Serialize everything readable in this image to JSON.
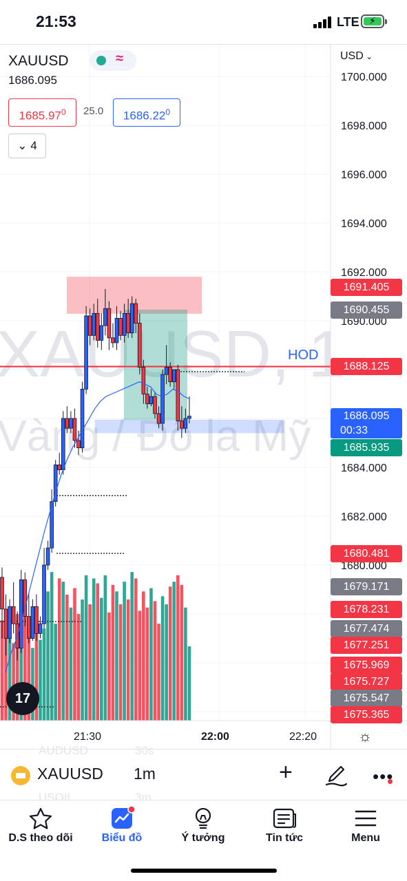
{
  "status_bar": {
    "time": "21:53",
    "network": "LTE"
  },
  "chart": {
    "symbol": "XAUUSD",
    "last_price": "1686.095",
    "bid": "1685.97",
    "bid_small": "0",
    "spread": "25.0",
    "ask": "1686.22",
    "ask_small": "0",
    "indicators_count": "4",
    "currency": "USD",
    "watermark_symbol": "XAUUSD, 1",
    "watermark_desc": "Vàng / Đô la Mỹ",
    "hod_label": "HOD",
    "price_axis": [
      "1700.000",
      "1698.000",
      "1696.000",
      "1694.000",
      "1692.000",
      "1690.000",
      "1684.000",
      "1682.000",
      "1680.000"
    ],
    "time_axis": [
      "21:30",
      "22:00",
      "22:20"
    ],
    "price_tags": {
      "t1691405": "1691.405",
      "t1690455": "1690.455",
      "t1688125": "1688.125",
      "current_price": "1686.095",
      "countdown": "00:33",
      "t1685935": "1685.935",
      "t1680481": "1680.481",
      "t1679171": "1679.171",
      "t1678231": "1678.231",
      "t1677474": "1677.474",
      "t1677251": "1677.251",
      "t1675969": "1675.969",
      "t1675727": "1675.727",
      "t1675547": "1675.547",
      "t1675365": "1675.365"
    },
    "colors": {
      "up": "#2962ff",
      "down": "#f23645",
      "hod_line": "#f23645",
      "volume_up": "#089981",
      "volume_down": "#f23645"
    }
  },
  "chart_data": {
    "type": "candlestick",
    "symbol": "XAUUSD",
    "interval": "1m",
    "ylim": [
      1675.2,
      1700.6
    ],
    "hod": 1688.125,
    "candles": [
      {
        "o": 1679.5,
        "h": 1679.9,
        "c": 1678.2,
        "l": 1677.0
      },
      {
        "o": 1678.2,
        "h": 1678.8,
        "c": 1677.0,
        "l": 1676.3
      },
      {
        "o": 1677.0,
        "h": 1678.6,
        "c": 1678.3,
        "l": 1676.8
      },
      {
        "o": 1678.3,
        "h": 1679.3,
        "c": 1677.6,
        "l": 1677.2
      },
      {
        "o": 1677.6,
        "h": 1678.1,
        "c": 1676.6,
        "l": 1676.1
      },
      {
        "o": 1676.6,
        "h": 1679.8,
        "c": 1679.4,
        "l": 1676.4
      },
      {
        "o": 1679.4,
        "h": 1679.7,
        "c": 1677.9,
        "l": 1677.5
      },
      {
        "o": 1677.9,
        "h": 1678.9,
        "c": 1677.0,
        "l": 1676.8
      },
      {
        "o": 1677.0,
        "h": 1678.6,
        "c": 1678.3,
        "l": 1676.9
      },
      {
        "o": 1678.3,
        "h": 1678.8,
        "c": 1677.2,
        "l": 1676.9
      },
      {
        "o": 1677.2,
        "h": 1677.9,
        "c": 1677.6,
        "l": 1677.0
      },
      {
        "o": 1677.6,
        "h": 1680.7,
        "c": 1680.0,
        "l": 1677.4
      },
      {
        "o": 1680.0,
        "h": 1681.0,
        "c": 1680.7,
        "l": 1679.8
      },
      {
        "o": 1680.7,
        "h": 1683.1,
        "c": 1682.6,
        "l": 1680.5
      },
      {
        "o": 1682.6,
        "h": 1684.3,
        "c": 1684.1,
        "l": 1682.4
      },
      {
        "o": 1684.1,
        "h": 1684.6,
        "c": 1683.9,
        "l": 1683.7
      },
      {
        "o": 1683.9,
        "h": 1686.3,
        "c": 1686.0,
        "l": 1683.7
      },
      {
        "o": 1686.0,
        "h": 1686.5,
        "c": 1685.6,
        "l": 1685.4
      },
      {
        "o": 1685.6,
        "h": 1686.3,
        "c": 1686.0,
        "l": 1685.4
      },
      {
        "o": 1686.0,
        "h": 1686.4,
        "c": 1685.1,
        "l": 1684.8
      },
      {
        "o": 1685.1,
        "h": 1685.5,
        "c": 1684.8,
        "l": 1684.5
      },
      {
        "o": 1684.8,
        "h": 1687.5,
        "c": 1687.2,
        "l": 1684.6
      },
      {
        "o": 1687.2,
        "h": 1690.6,
        "c": 1690.2,
        "l": 1687.0
      },
      {
        "o": 1690.2,
        "h": 1690.5,
        "c": 1689.4,
        "l": 1689.0
      },
      {
        "o": 1689.4,
        "h": 1690.7,
        "c": 1690.3,
        "l": 1689.2
      },
      {
        "o": 1690.3,
        "h": 1690.9,
        "c": 1689.2,
        "l": 1688.9
      },
      {
        "o": 1689.2,
        "h": 1690.3,
        "c": 1689.8,
        "l": 1688.8
      },
      {
        "o": 1689.8,
        "h": 1691.3,
        "c": 1690.5,
        "l": 1689.4
      },
      {
        "o": 1690.5,
        "h": 1690.8,
        "c": 1689.3,
        "l": 1688.8
      },
      {
        "o": 1689.3,
        "h": 1689.9,
        "c": 1689.1,
        "l": 1688.9
      },
      {
        "o": 1689.1,
        "h": 1690.6,
        "c": 1690.1,
        "l": 1688.8
      },
      {
        "o": 1690.1,
        "h": 1690.4,
        "c": 1689.4,
        "l": 1689.2
      },
      {
        "o": 1689.4,
        "h": 1690.7,
        "c": 1690.3,
        "l": 1689.1
      },
      {
        "o": 1690.3,
        "h": 1690.9,
        "c": 1689.5,
        "l": 1689.3
      },
      {
        "o": 1689.5,
        "h": 1691.0,
        "c": 1690.7,
        "l": 1689.3
      },
      {
        "o": 1690.7,
        "h": 1690.9,
        "c": 1689.9,
        "l": 1689.5
      },
      {
        "o": 1689.9,
        "h": 1690.3,
        "c": 1688.1,
        "l": 1687.8
      },
      {
        "o": 1688.1,
        "h": 1688.4,
        "c": 1687.0,
        "l": 1686.6
      },
      {
        "o": 1687.0,
        "h": 1687.3,
        "c": 1686.6,
        "l": 1686.4
      },
      {
        "o": 1686.6,
        "h": 1687.2,
        "c": 1686.9,
        "l": 1686.5
      },
      {
        "o": 1686.9,
        "h": 1687.1,
        "c": 1686.2,
        "l": 1686.0
      },
      {
        "o": 1686.2,
        "h": 1686.5,
        "c": 1685.8,
        "l": 1685.6
      },
      {
        "o": 1685.8,
        "h": 1688.0,
        "c": 1687.8,
        "l": 1685.5
      },
      {
        "o": 1687.8,
        "h": 1689.0,
        "c": 1688.1,
        "l": 1687.4
      },
      {
        "o": 1688.1,
        "h": 1688.3,
        "c": 1687.5,
        "l": 1687.3
      },
      {
        "o": 1687.5,
        "h": 1687.9,
        "c": 1688.0,
        "l": 1687.2
      },
      {
        "o": 1688.0,
        "h": 1688.2,
        "c": 1685.9,
        "l": 1685.5
      },
      {
        "o": 1685.9,
        "h": 1686.5,
        "c": 1685.6,
        "l": 1685.2
      },
      {
        "o": 1685.6,
        "h": 1686.4,
        "c": 1686.0,
        "l": 1685.4
      },
      {
        "o": 1686.0,
        "h": 1686.9,
        "c": 1686.095,
        "l": 1685.8
      }
    ],
    "volume": [
      62,
      55,
      70,
      48,
      66,
      52,
      74,
      58,
      45,
      68,
      50,
      57,
      80,
      92,
      60,
      88,
      86,
      78,
      70,
      82,
      66,
      75,
      90,
      72,
      88,
      85,
      76,
      90,
      67,
      84,
      80,
      72,
      86,
      75,
      92,
      88,
      68,
      80,
      70,
      82,
      74,
      60,
      77,
      72,
      83,
      86,
      90,
      84,
      70,
      46
    ],
    "ma_line": [
      1675.6,
      1676.4,
      1677.0,
      1677.8,
      1678.7,
      1679.6,
      1680.5,
      1681.4,
      1682.2,
      1683.0,
      1683.7,
      1684.3,
      1684.8,
      1685.2,
      1685.6,
      1686.0,
      1686.4,
      1686.7,
      1686.9,
      1687.0,
      1687.1,
      1687.2,
      1687.3,
      1687.4,
      1687.5,
      1687.4,
      1687.3,
      1687.0,
      1686.9,
      1687.0,
      1687.2,
      1687.1,
      1686.9,
      1686.8
    ],
    "annotations": {
      "short_position": {
        "entry": 1690.455,
        "stop": 1691.405,
        "target": 1685.935
      },
      "demand_zone": [
        1685.4,
        1685.95
      ]
    }
  },
  "toolbar": {
    "symbol": "XAUUSD",
    "interval": "1m",
    "ghost_rows": [
      {
        "symbol": "AUDUSD",
        "interval": "30s"
      },
      {
        "symbol": "USOIL",
        "interval": "3m"
      }
    ]
  },
  "nav": {
    "items": [
      {
        "label": "D.S theo dõi"
      },
      {
        "label": "Biểu đồ"
      },
      {
        "label": "Ý tưởng"
      },
      {
        "label": "Tin tức"
      },
      {
        "label": "Menu"
      }
    ]
  }
}
